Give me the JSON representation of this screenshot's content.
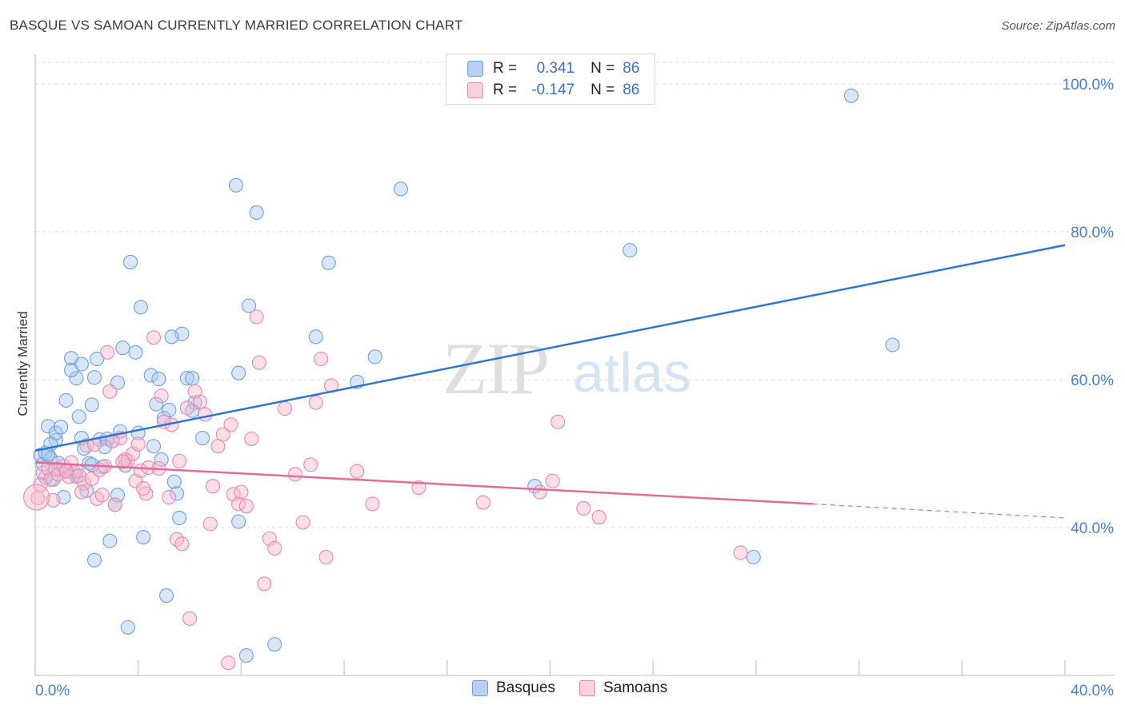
{
  "title": "BASQUE VS SAMOAN CURRENTLY MARRIED CORRELATION CHART",
  "source": "Source: ZipAtlas.com",
  "watermark": {
    "zip": "ZIP",
    "atlas": "atlas"
  },
  "legend": {
    "rows": [
      {
        "r_label": "R =",
        "r_value": "0.341",
        "n_label": "N =",
        "n_value": "86"
      },
      {
        "r_label": "R =",
        "r_value": "-0.147",
        "n_label": "N =",
        "n_value": "86"
      }
    ]
  },
  "colors": {
    "basque_fill": "#a9c7f0",
    "basque_stroke": "#6f9fe0",
    "basque_line": "#2f74d0",
    "samoan_fill": "#f7b8cd",
    "samoan_stroke": "#ea88aa",
    "samoan_line": "#e26b98",
    "tick_text": "#4a7fd0",
    "grid": "#dcdcdc"
  },
  "chart_data": {
    "type": "scatter",
    "title": "BASQUE VS SAMOAN CURRENTLY MARRIED CORRELATION CHART",
    "xlabel": "",
    "ylabel": "Currently Married",
    "xlim": [
      0,
      40
    ],
    "ylim": [
      20,
      104
    ],
    "x_tick_labels": [
      "0.0%",
      "40.0%"
    ],
    "y_ticks": [
      40,
      60,
      80,
      100
    ],
    "y_tick_labels": [
      "40.0%",
      "60.0%",
      "80.0%",
      "100.0%"
    ],
    "series": [
      {
        "name": "Basques",
        "r": 0.341,
        "n": 86,
        "trend": {
          "x0": 0,
          "y0": 50.4,
          "x1": 40,
          "y1": 78.2
        },
        "points": [
          [
            0.2,
            49.8
          ],
          [
            0.3,
            48.6
          ],
          [
            0.4,
            50.1
          ],
          [
            0.5,
            53.7
          ],
          [
            0.6,
            49.3
          ],
          [
            0.7,
            46.5
          ],
          [
            0.8,
            51.8
          ],
          [
            0.8,
            52.8
          ],
          [
            1.0,
            53.6
          ],
          [
            0.5,
            49.9
          ],
          [
            0.9,
            48.7
          ],
          [
            1.2,
            47.8
          ],
          [
            1.2,
            57.2
          ],
          [
            1.4,
            62.9
          ],
          [
            1.6,
            60.2
          ],
          [
            1.7,
            55.0
          ],
          [
            1.5,
            47.5
          ],
          [
            1.8,
            62.1
          ],
          [
            1.9,
            50.7
          ],
          [
            2.1,
            48.7
          ],
          [
            2.2,
            56.6
          ],
          [
            2.3,
            60.3
          ],
          [
            2.4,
            62.8
          ],
          [
            2.5,
            51.9
          ],
          [
            2.6,
            48.2
          ],
          [
            2.8,
            52.0
          ],
          [
            2.9,
            38.2
          ],
          [
            3.0,
            51.7
          ],
          [
            3.1,
            43.1
          ],
          [
            3.2,
            59.6
          ],
          [
            3.3,
            53.0
          ],
          [
            3.4,
            64.3
          ],
          [
            3.5,
            48.4
          ],
          [
            3.7,
            75.9
          ],
          [
            3.9,
            63.7
          ],
          [
            4.0,
            52.8
          ],
          [
            4.1,
            69.8
          ],
          [
            4.2,
            38.7
          ],
          [
            4.5,
            60.6
          ],
          [
            4.8,
            60.1
          ],
          [
            4.7,
            56.7
          ],
          [
            5.0,
            54.8
          ],
          [
            5.1,
            30.8
          ],
          [
            5.2,
            55.9
          ],
          [
            5.4,
            46.2
          ],
          [
            5.5,
            44.6
          ],
          [
            5.7,
            66.2
          ],
          [
            5.9,
            60.2
          ],
          [
            6.1,
            60.2
          ],
          [
            6.2,
            56.9
          ],
          [
            6.5,
            52.1
          ],
          [
            7.8,
            86.3
          ],
          [
            7.9,
            60.9
          ],
          [
            8.3,
            70.0
          ],
          [
            8.6,
            82.6
          ],
          [
            9.3,
            24.2
          ],
          [
            10.9,
            65.8
          ],
          [
            11.4,
            75.8
          ],
          [
            12.5,
            59.7
          ],
          [
            13.2,
            63.1
          ],
          [
            14.2,
            85.8
          ],
          [
            1.8,
            52.1
          ],
          [
            2.0,
            45.0
          ],
          [
            3.2,
            44.4
          ],
          [
            1.4,
            61.3
          ],
          [
            0.9,
            47.9
          ],
          [
            2.7,
            50.9
          ],
          [
            6.1,
            55.8
          ],
          [
            5.3,
            65.8
          ],
          [
            4.9,
            49.2
          ],
          [
            1.1,
            44.1
          ],
          [
            0.6,
            51.3
          ],
          [
            2.3,
            35.6
          ],
          [
            3.6,
            26.5
          ],
          [
            8.2,
            22.7
          ],
          [
            7.9,
            40.8
          ],
          [
            5.6,
            41.3
          ],
          [
            4.6,
            51.0
          ],
          [
            2.2,
            48.5
          ],
          [
            19.4,
            45.6
          ],
          [
            23.1,
            77.5
          ],
          [
            31.7,
            98.4
          ],
          [
            33.3,
            64.7
          ],
          [
            27.9,
            36.0
          ],
          [
            1.6,
            46.9
          ],
          [
            0.4,
            46.8
          ]
        ]
      },
      {
        "name": "Samoans",
        "r": -0.147,
        "n": 86,
        "trend": {
          "x0": 0,
          "y0": 48.8,
          "x1": 30.2,
          "y1": 43.2,
          "dash_x1": 40,
          "dash_y1": 41.3
        },
        "points": [
          [
            0.1,
            44.0
          ],
          [
            0.3,
            47.4
          ],
          [
            0.5,
            48.0
          ],
          [
            0.6,
            46.5
          ],
          [
            0.8,
            47.9
          ],
          [
            0.9,
            47.2
          ],
          [
            1.1,
            48.3
          ],
          [
            1.3,
            46.9
          ],
          [
            1.4,
            48.8
          ],
          [
            1.6,
            47.7
          ],
          [
            1.7,
            47.0
          ],
          [
            1.9,
            46.0
          ],
          [
            2.0,
            51.1
          ],
          [
            2.2,
            46.6
          ],
          [
            2.4,
            43.9
          ],
          [
            2.5,
            47.8
          ],
          [
            2.6,
            44.4
          ],
          [
            2.8,
            63.7
          ],
          [
            2.9,
            58.4
          ],
          [
            3.1,
            43.1
          ],
          [
            3.3,
            52.1
          ],
          [
            3.5,
            49.2
          ],
          [
            3.6,
            49.0
          ],
          [
            3.8,
            50.0
          ],
          [
            3.9,
            46.3
          ],
          [
            4.0,
            51.3
          ],
          [
            4.1,
            47.7
          ],
          [
            4.3,
            44.6
          ],
          [
            4.4,
            48.1
          ],
          [
            4.6,
            65.7
          ],
          [
            4.8,
            48.0
          ],
          [
            4.9,
            57.8
          ],
          [
            5.0,
            54.3
          ],
          [
            5.2,
            44.1
          ],
          [
            5.3,
            53.9
          ],
          [
            5.5,
            38.4
          ],
          [
            5.7,
            37.8
          ],
          [
            5.9,
            56.2
          ],
          [
            6.0,
            27.7
          ],
          [
            6.2,
            58.4
          ],
          [
            6.4,
            57.0
          ],
          [
            6.6,
            55.3
          ],
          [
            6.8,
            40.5
          ],
          [
            7.1,
            51.0
          ],
          [
            7.3,
            52.6
          ],
          [
            7.5,
            21.7
          ],
          [
            7.7,
            44.5
          ],
          [
            7.9,
            43.2
          ],
          [
            8.0,
            44.8
          ],
          [
            8.2,
            42.9
          ],
          [
            8.4,
            52.0
          ],
          [
            8.6,
            68.5
          ],
          [
            8.7,
            62.3
          ],
          [
            8.9,
            32.4
          ],
          [
            9.1,
            38.5
          ],
          [
            9.3,
            37.2
          ],
          [
            9.7,
            56.1
          ],
          [
            10.1,
            47.2
          ],
          [
            10.4,
            40.7
          ],
          [
            10.7,
            48.5
          ],
          [
            10.9,
            56.9
          ],
          [
            11.1,
            62.8
          ],
          [
            11.3,
            36.0
          ],
          [
            11.5,
            59.2
          ],
          [
            12.5,
            47.6
          ],
          [
            13.1,
            43.2
          ],
          [
            14.9,
            45.4
          ],
          [
            17.4,
            43.4
          ],
          [
            19.6,
            44.8
          ],
          [
            20.1,
            46.3
          ],
          [
            20.3,
            54.3
          ],
          [
            21.3,
            42.6
          ],
          [
            21.9,
            41.4
          ],
          [
            27.4,
            36.6
          ],
          [
            0.2,
            45.8
          ],
          [
            1.2,
            47.6
          ],
          [
            2.3,
            51.2
          ],
          [
            3.4,
            48.9
          ],
          [
            4.2,
            45.3
          ],
          [
            5.6,
            49.0
          ],
          [
            6.9,
            45.6
          ],
          [
            7.6,
            53.9
          ],
          [
            0.7,
            43.7
          ],
          [
            1.8,
            44.8
          ],
          [
            2.7,
            48.3
          ],
          [
            3.0,
            51.7
          ]
        ]
      }
    ]
  },
  "bottom_legend": [
    "Basques",
    "Samoans"
  ]
}
